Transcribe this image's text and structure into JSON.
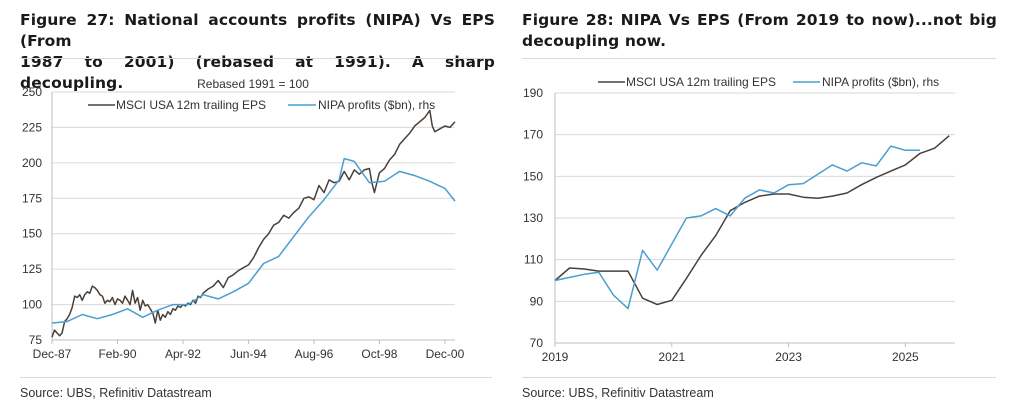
{
  "figures": [
    {
      "title_line1": "Figure 27: National accounts profits (NIPA) Vs EPS (From",
      "title_line2": "1987 to 2001) (rebased at 1991). A sharp decoupling.",
      "source": "Source: UBS, Refinitiv Datastream"
    },
    {
      "title_line1": "Figure 28: NIPA Vs EPS (From 2019 to now)...not big",
      "title_line2": "decoupling now.",
      "source": "Source: UBS, Refinitiv Datastream"
    }
  ],
  "colors": {
    "eps": "#4a403a",
    "nipa": "#4a9fd0",
    "grid": "#d9d9d9",
    "axis": "#bfbfbf"
  },
  "chart_data": [
    {
      "type": "line",
      "title": "Figure 27: National accounts profits (NIPA) Vs EPS (From 1987 to 2001) (rebased at 1991). A sharp decoupling.",
      "subtitle": "Rebased 1991 = 100",
      "xlabel": "",
      "ylabel": "",
      "x_unit": "months since Dec-87",
      "x_ticks": [
        0,
        26,
        52,
        78,
        104,
        130,
        156
      ],
      "x_tick_labels": [
        "Dec-87",
        "Feb-90",
        "Apr-92",
        "Jun-94",
        "Aug-96",
        "Oct-98",
        "Dec-00"
      ],
      "xlim": [
        0,
        160
      ],
      "ylim": [
        75,
        250
      ],
      "y_ticks": [
        75,
        100,
        125,
        150,
        175,
        200,
        225,
        250
      ],
      "grid": true,
      "legend_position": "top",
      "series": [
        {
          "name": "MSCI USA 12m trailing EPS",
          "color_key": "eps",
          "x": [
            0,
            1,
            2,
            3,
            4,
            5,
            6,
            7,
            8,
            9,
            10,
            11,
            12,
            13,
            14,
            15,
            16,
            17,
            18,
            19,
            20,
            21,
            22,
            23,
            24,
            25,
            26,
            27,
            28,
            29,
            30,
            31,
            32,
            33,
            34,
            35,
            36,
            37,
            38,
            39,
            40,
            41,
            42,
            43,
            44,
            45,
            46,
            47,
            48,
            49,
            50,
            51,
            52,
            53,
            54,
            55,
            56,
            57,
            58,
            59,
            60,
            62,
            64,
            66,
            68,
            70,
            72,
            74,
            76,
            78,
            80,
            82,
            84,
            86,
            88,
            90,
            92,
            94,
            96,
            98,
            100,
            102,
            104,
            106,
            108,
            110,
            112,
            114,
            116,
            118,
            120,
            122,
            124,
            126,
            127,
            128,
            130,
            132,
            134,
            136,
            138,
            140,
            142,
            144,
            146,
            148,
            150,
            151,
            152,
            154,
            156,
            158,
            160
          ],
          "values": [
            77,
            82,
            80,
            78,
            80,
            88,
            90,
            93,
            98,
            106,
            105,
            107,
            103,
            107,
            109,
            108,
            113,
            112,
            110,
            107,
            106,
            101,
            103,
            102,
            105,
            100,
            104,
            103,
            101,
            106,
            103,
            100,
            110,
            101,
            105,
            96,
            103,
            99,
            100,
            97,
            94,
            87,
            96,
            89,
            93,
            91,
            95,
            93,
            97,
            96,
            99,
            98,
            100,
            99,
            101,
            100,
            103,
            101,
            106,
            105,
            108,
            111,
            113,
            117,
            112,
            119,
            121,
            124,
            126,
            128,
            133,
            140,
            146,
            150,
            156,
            158,
            163,
            161,
            165,
            168,
            175,
            176,
            174,
            184,
            179,
            188,
            186,
            187,
            194,
            188,
            195,
            192,
            195,
            196,
            186,
            179,
            193,
            196,
            202,
            206,
            213,
            217,
            221,
            226,
            229,
            232,
            237,
            226,
            222,
            224,
            226,
            225,
            229
          ]
        },
        {
          "name": "NIPA profits ($bn), rhs",
          "color_key": "nipa",
          "x": [
            0,
            6,
            12,
            18,
            24,
            30,
            36,
            42,
            48,
            54,
            60,
            66,
            72,
            78,
            84,
            90,
            96,
            102,
            108,
            114,
            116,
            120,
            126,
            132,
            138,
            144,
            150,
            156,
            160
          ],
          "values": [
            87,
            88,
            93,
            90,
            93,
            97,
            91,
            96,
            100,
            100,
            107,
            104,
            109,
            115,
            129,
            134,
            148,
            162,
            174,
            188,
            203,
            201,
            186,
            187,
            194,
            191,
            187,
            182,
            173
          ]
        }
      ]
    },
    {
      "type": "line",
      "title": "Figure 28: NIPA Vs EPS (From 2019 to now)...not big decoupling now.",
      "xlabel": "",
      "ylabel": "",
      "x_unit": "year",
      "x_ticks": [
        2019,
        2021,
        2023,
        2025
      ],
      "x_tick_labels": [
        "2019",
        "2021",
        "2023",
        "2025"
      ],
      "xlim": [
        2019,
        2025.85
      ],
      "ylim": [
        70,
        190
      ],
      "y_ticks": [
        70,
        90,
        110,
        130,
        150,
        170,
        190
      ],
      "grid": true,
      "legend_position": "top",
      "series": [
        {
          "name": "MSCI USA 12m trailing EPS",
          "color_key": "eps",
          "x": [
            2019.0,
            2019.25,
            2019.5,
            2019.75,
            2020.0,
            2020.25,
            2020.5,
            2020.75,
            2021.0,
            2021.25,
            2021.5,
            2021.75,
            2022.0,
            2022.25,
            2022.5,
            2022.75,
            2023.0,
            2023.25,
            2023.5,
            2023.75,
            2024.0,
            2024.25,
            2024.5,
            2024.75,
            2025.0,
            2025.25,
            2025.5,
            2025.75
          ],
          "values": [
            100,
            106,
            105.5,
            104.5,
            104.5,
            104.5,
            91.5,
            88.5,
            90.5,
            101,
            112,
            121.5,
            133.5,
            137.5,
            140.5,
            141.5,
            141.5,
            140,
            139.5,
            140.5,
            142,
            146,
            149.5,
            152.5,
            155.5,
            161,
            163.5,
            169.5
          ]
        },
        {
          "name": "NIPA profits ($bn), rhs",
          "color_key": "nipa",
          "x": [
            2019.0,
            2019.25,
            2019.5,
            2019.75,
            2020.0,
            2020.25,
            2020.5,
            2020.75,
            2021.0,
            2021.25,
            2021.5,
            2021.75,
            2022.0,
            2022.25,
            2022.5,
            2022.75,
            2023.0,
            2023.25,
            2023.5,
            2023.75,
            2024.0,
            2024.25,
            2024.5,
            2024.75,
            2025.0,
            2025.25
          ],
          "values": [
            100,
            101.5,
            103,
            104,
            93,
            86.5,
            114.5,
            105,
            117.5,
            130,
            131,
            134.5,
            131,
            139.5,
            143.5,
            142,
            146,
            146.5,
            151,
            155.5,
            152.5,
            156.5,
            155,
            164.5,
            162.5,
            162.5
          ]
        }
      ]
    }
  ]
}
